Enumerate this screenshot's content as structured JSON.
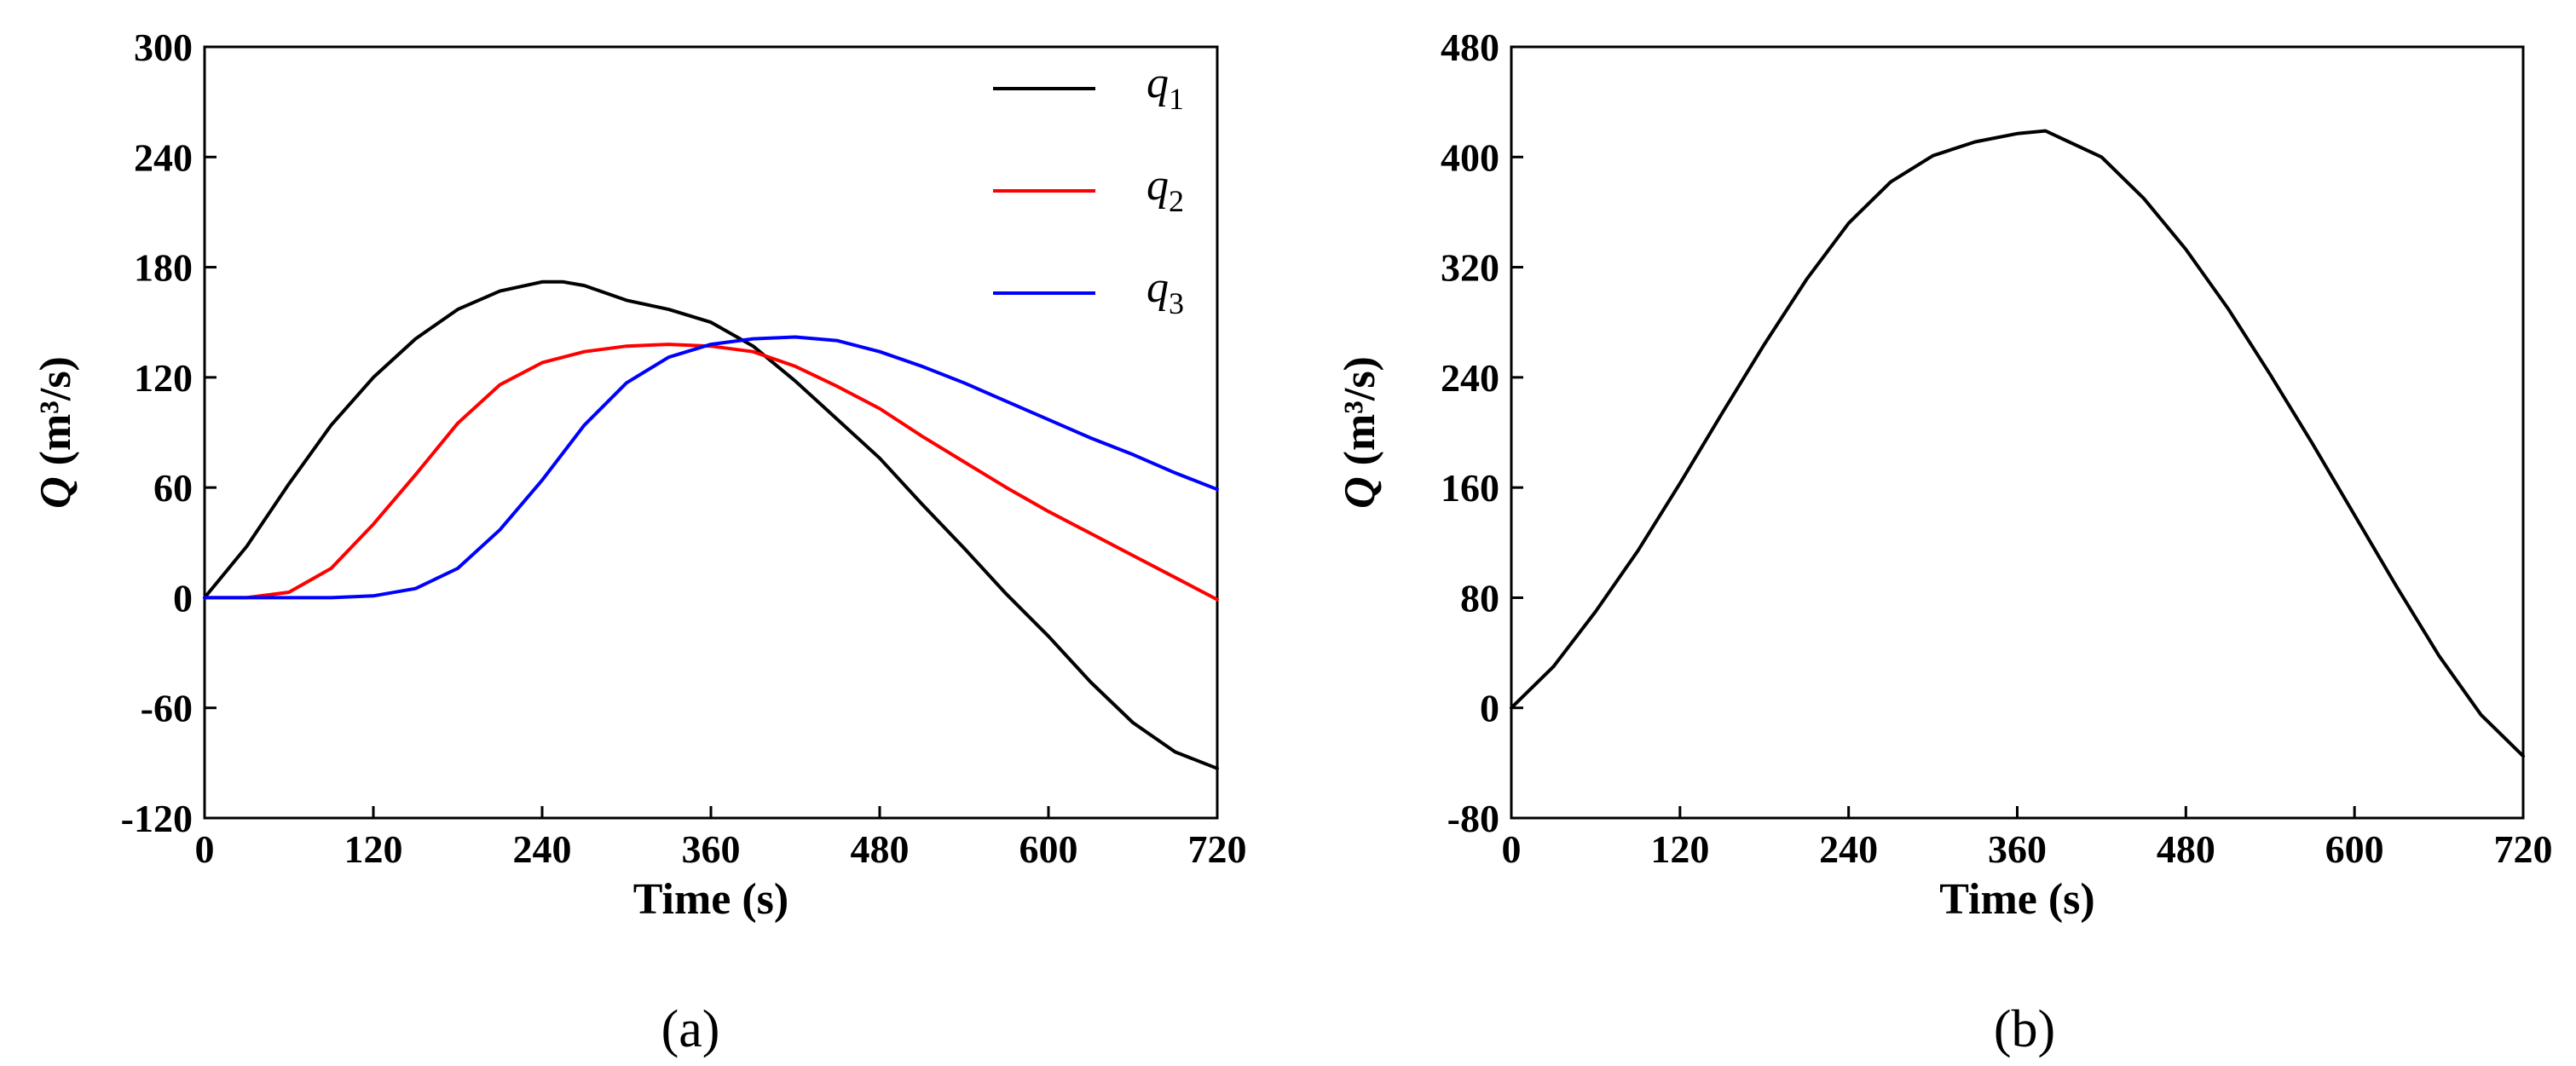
{
  "chart_data": [
    {
      "type": "line",
      "caption": "(a)",
      "xlabel": "Time (s)",
      "ylabel": {
        "symbol": "Q",
        "unit": "(m³/s)"
      },
      "xlim": [
        0,
        720
      ],
      "ylim": [
        -120,
        300
      ],
      "xticks": [
        "0",
        "120",
        "240",
        "360",
        "480",
        "600",
        "720"
      ],
      "yticks": [
        "-120",
        "-60",
        "0",
        "60",
        "120",
        "180",
        "240",
        "300"
      ],
      "grid": false,
      "legend_position": "top-right",
      "series": [
        {
          "name": "q1",
          "name_base": "q",
          "name_sub": "1",
          "color": "#000000",
          "x": [
            0,
            30,
            60,
            90,
            120,
            150,
            180,
            210,
            240,
            255,
            270,
            300,
            330,
            360,
            390,
            420,
            450,
            480,
            510,
            540,
            570,
            600,
            630,
            660,
            690,
            720
          ],
          "y": [
            0,
            28,
            62,
            94,
            120,
            141,
            157,
            167,
            172,
            172,
            170,
            162,
            157,
            150,
            137,
            118,
            97,
            76,
            51,
            27,
            2,
            -21,
            -46,
            -68,
            -84,
            -93
          ]
        },
        {
          "name": "q2",
          "name_base": "q",
          "name_sub": "2",
          "color": "#ff0000",
          "x": [
            0,
            30,
            60,
            90,
            120,
            150,
            180,
            210,
            240,
            270,
            300,
            330,
            360,
            390,
            420,
            450,
            480,
            510,
            540,
            570,
            600,
            630,
            660,
            690,
            720
          ],
          "y": [
            0,
            0,
            3,
            16,
            40,
            67,
            95,
            116,
            128,
            134,
            137,
            138,
            137,
            134,
            126,
            115,
            103,
            88,
            74,
            60,
            47,
            35,
            23,
            11,
            -1
          ]
        },
        {
          "name": "q3",
          "name_base": "q",
          "name_sub": "3",
          "color": "#0000ff",
          "x": [
            0,
            30,
            60,
            90,
            120,
            150,
            180,
            210,
            240,
            270,
            300,
            330,
            360,
            390,
            420,
            450,
            480,
            510,
            540,
            570,
            600,
            630,
            660,
            690,
            720
          ],
          "y": [
            0,
            0,
            0,
            0,
            1,
            5,
            16,
            37,
            64,
            94,
            117,
            131,
            138,
            141,
            142,
            140,
            134,
            126,
            117,
            107,
            97,
            87,
            78,
            68,
            59
          ]
        }
      ]
    },
    {
      "type": "line",
      "caption": "(b)",
      "xlabel": "Time (s)",
      "ylabel": {
        "symbol": "Q",
        "unit": "(m³/s)"
      },
      "xlim": [
        0,
        720
      ],
      "ylim": [
        -80,
        480
      ],
      "xticks": [
        "0",
        "120",
        "240",
        "360",
        "480",
        "600",
        "720"
      ],
      "yticks": [
        "-80",
        "0",
        "80",
        "160",
        "240",
        "320",
        "400",
        "480"
      ],
      "grid": false,
      "series": [
        {
          "color": "#000000",
          "x": [
            0,
            30,
            60,
            90,
            120,
            150,
            180,
            210,
            240,
            270,
            300,
            330,
            360,
            380,
            420,
            450,
            480,
            510,
            540,
            570,
            600,
            630,
            660,
            690,
            720
          ],
          "y": [
            0,
            30,
            70,
            114,
            163,
            214,
            264,
            311,
            352,
            382,
            401,
            411,
            417,
            419,
            400,
            370,
            333,
            290,
            242,
            192,
            140,
            88,
            38,
            -5,
            -35
          ]
        }
      ]
    }
  ]
}
